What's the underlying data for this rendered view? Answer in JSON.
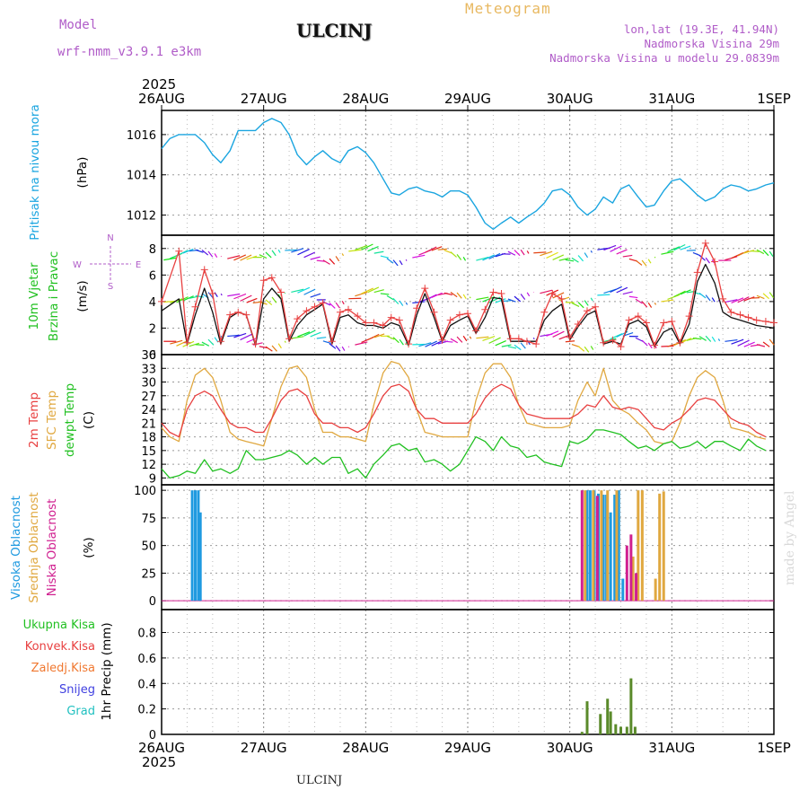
{
  "header": {
    "model_label": "Model",
    "model_name": "wrf-nmm_v3.9.1  e3km",
    "station": "ULCINJ",
    "title": "Meteogram",
    "lonlat": "lon,lat (19.3E, 41.94N)",
    "elevation": "Nadmorska Visina 29m",
    "elevation_model": "Nadmorska Visina u modelu 29.0839m"
  },
  "footer": {
    "station": "ULCINJ",
    "credit": "made by Angel"
  },
  "colors": {
    "pressure": "#1aa5e0",
    "wind_avg": "#111111",
    "wind_gust": "#e84040",
    "temp2m": "#e84040",
    "sfc_temp": "#e0a840",
    "dewpoint": "#20c020",
    "cloud_high": "#1f9ae0",
    "cloud_mid": "#e0a840",
    "cloud_low": "#d02090",
    "precip_total": "#20c020",
    "precip_conv": "#e84040",
    "precip_frozen": "#f07830",
    "snow": "#4040e0",
    "hail": "#20c0c0",
    "precip_bar": "#5a8a2a"
  },
  "chart_data": [
    {
      "type": "line",
      "name": "pressure",
      "ylabel": [
        "Pritisak na nivou mora",
        "(hPa)"
      ],
      "ylim": [
        1011,
        1017.2
      ],
      "yticks": [
        1012,
        1014,
        1016
      ],
      "grid": true,
      "x_days": [
        0,
        0.08,
        0.17,
        0.25,
        0.33,
        0.42,
        0.5,
        0.58,
        0.67,
        0.75,
        0.83,
        0.92,
        1.0,
        1.08,
        1.17,
        1.25,
        1.33,
        1.42,
        1.5,
        1.58,
        1.67,
        1.75,
        1.83,
        1.92,
        2.0,
        2.08,
        2.17,
        2.25,
        2.33,
        2.42,
        2.5,
        2.58,
        2.67,
        2.75,
        2.83,
        2.92,
        3.0,
        3.08,
        3.17,
        3.25,
        3.33,
        3.42,
        3.5,
        3.58,
        3.67,
        3.75,
        3.83,
        3.92,
        4.0,
        4.08,
        4.17,
        4.25,
        4.33,
        4.42,
        4.5,
        4.58,
        4.67,
        4.75,
        4.83,
        4.92,
        5.0,
        5.08,
        5.17,
        5.25,
        5.33,
        5.42,
        5.5,
        5.58,
        5.67,
        5.75,
        5.83,
        5.92,
        6.0
      ],
      "values": [
        1015.3,
        1015.8,
        1016.0,
        1016.0,
        1016.0,
        1015.6,
        1015.0,
        1014.6,
        1015.2,
        1016.2,
        1016.2,
        1016.2,
        1016.6,
        1016.8,
        1016.6,
        1016.0,
        1015.0,
        1014.5,
        1014.9,
        1015.2,
        1014.8,
        1014.6,
        1015.2,
        1015.4,
        1015.1,
        1014.6,
        1013.8,
        1013.1,
        1013.0,
        1013.3,
        1013.4,
        1013.2,
        1013.1,
        1012.9,
        1013.2,
        1013.2,
        1013.0,
        1012.4,
        1011.6,
        1011.3,
        1011.6,
        1011.9,
        1011.6,
        1011.9,
        1012.2,
        1012.6,
        1013.2,
        1013.3,
        1013.0,
        1012.4,
        1012.0,
        1012.3,
        1012.9,
        1012.6,
        1013.3,
        1013.5,
        1012.9,
        1012.4,
        1012.5,
        1013.2,
        1013.7,
        1013.8,
        1013.4,
        1013.0,
        1012.7,
        1012.9,
        1013.3,
        1013.5,
        1013.4,
        1013.2,
        1013.3,
        1013.5,
        1013.6
      ]
    },
    {
      "type": "line",
      "name": "wind",
      "ylabel": [
        "10m Vjetar",
        "Brzina i Pravac",
        "(m/s)"
      ],
      "compass": {
        "north": "N",
        "south": "S",
        "west": "W",
        "east": "E"
      },
      "ylim": [
        0,
        9
      ],
      "yticks": [
        0,
        2,
        4,
        6,
        8
      ],
      "grid": true,
      "x_days": [
        0,
        0.17,
        0.25,
        0.33,
        0.42,
        0.5,
        0.58,
        0.67,
        0.75,
        0.83,
        0.92,
        1.0,
        1.08,
        1.17,
        1.25,
        1.33,
        1.42,
        1.5,
        1.58,
        1.67,
        1.75,
        1.83,
        1.92,
        2.0,
        2.08,
        2.17,
        2.25,
        2.33,
        2.42,
        2.5,
        2.58,
        2.67,
        2.75,
        2.83,
        2.92,
        3.0,
        3.08,
        3.17,
        3.25,
        3.33,
        3.42,
        3.5,
        3.58,
        3.67,
        3.75,
        3.83,
        3.92,
        4.0,
        4.08,
        4.17,
        4.25,
        4.33,
        4.42,
        4.5,
        4.58,
        4.67,
        4.75,
        4.83,
        4.92,
        5.0,
        5.08,
        5.17,
        5.25,
        5.33,
        5.42,
        5.5,
        5.58,
        5.67,
        5.75,
        5.83,
        5.92,
        6.0
      ],
      "series": [
        {
          "name": "avg",
          "values": [
            3.3,
            4.2,
            0.8,
            3.0,
            5.0,
            3.2,
            0.8,
            2.8,
            3.2,
            3.0,
            0.7,
            4.2,
            5.0,
            4.2,
            1.0,
            2.2,
            3.0,
            3.4,
            3.8,
            0.8,
            2.8,
            3.0,
            2.4,
            2.2,
            2.2,
            2.0,
            2.4,
            2.2,
            0.7,
            3.0,
            4.6,
            2.8,
            1.0,
            2.2,
            2.6,
            2.9,
            1.6,
            2.8,
            4.3,
            4.2,
            1.0,
            1.0,
            1.0,
            1.0,
            2.6,
            3.3,
            3.8,
            1.1,
            2.1,
            3.0,
            3.3,
            0.8,
            1.0,
            0.8,
            2.3,
            2.6,
            2.1,
            0.6,
            1.7,
            2.0,
            0.8,
            2.3,
            5.5,
            6.8,
            5.4,
            3.2,
            2.8,
            2.6,
            2.4,
            2.2,
            2.1,
            2.0
          ]
        },
        {
          "name": "gust",
          "values": [
            4.0,
            7.8,
            0.9,
            3.6,
            6.4,
            4.6,
            1.0,
            3.0,
            3.2,
            3.0,
            0.8,
            5.6,
            5.8,
            4.7,
            1.2,
            2.7,
            3.3,
            3.6,
            3.9,
            1.0,
            3.2,
            3.4,
            2.9,
            2.4,
            2.4,
            2.2,
            2.8,
            2.6,
            0.8,
            3.5,
            5.0,
            3.2,
            1.1,
            2.6,
            3.0,
            3.1,
            1.8,
            3.4,
            4.7,
            4.6,
            1.2,
            1.2,
            1.0,
            0.8,
            3.2,
            4.6,
            4.2,
            1.3,
            2.3,
            3.3,
            3.6,
            0.9,
            1.1,
            0.6,
            2.6,
            2.9,
            2.4,
            0.7,
            2.4,
            2.5,
            0.9,
            2.9,
            6.2,
            8.4,
            7.0,
            4.2,
            3.2,
            3.0,
            2.8,
            2.6,
            2.5,
            2.4
          ]
        }
      ]
    },
    {
      "type": "line",
      "name": "temperature",
      "ylabel": [
        "2m Temp",
        "SFC Temp",
        "dewpt Temp",
        "(C)"
      ],
      "ylim": [
        7.5,
        36
      ],
      "yticks": [
        9,
        12,
        15,
        18,
        21,
        24,
        27,
        30,
        33,
        36
      ],
      "grid": true,
      "x_days": [
        0,
        0.08,
        0.17,
        0.25,
        0.33,
        0.42,
        0.5,
        0.58,
        0.67,
        0.75,
        0.83,
        0.92,
        1.0,
        1.08,
        1.17,
        1.25,
        1.33,
        1.42,
        1.5,
        1.58,
        1.67,
        1.75,
        1.83,
        1.92,
        2.0,
        2.08,
        2.17,
        2.25,
        2.33,
        2.42,
        2.5,
        2.58,
        2.67,
        2.75,
        2.83,
        2.92,
        3.0,
        3.08,
        3.17,
        3.25,
        3.33,
        3.42,
        3.5,
        3.58,
        3.67,
        3.75,
        3.83,
        3.92,
        4.0,
        4.08,
        4.17,
        4.25,
        4.33,
        4.42,
        4.5,
        4.58,
        4.67,
        4.75,
        4.83,
        4.92,
        5.0,
        5.08,
        5.17,
        5.25,
        5.33,
        5.42,
        5.5,
        5.58,
        5.67,
        5.75,
        5.83,
        5.92,
        6.0
      ],
      "series": [
        {
          "name": "2m",
          "values": [
            21,
            19,
            18,
            24,
            27,
            28,
            27,
            24,
            21,
            20,
            20,
            19,
            19,
            22,
            26,
            28,
            28.5,
            27,
            23,
            21,
            21,
            20,
            20,
            19,
            20,
            23,
            27,
            29,
            29.5,
            28,
            24,
            22,
            22,
            21,
            21,
            21,
            21,
            23,
            26.5,
            28.5,
            29.5,
            28.5,
            25,
            23,
            22.5,
            22,
            22,
            22,
            22,
            23,
            25,
            24.5,
            27,
            24.5,
            24,
            24.5,
            24,
            22,
            20,
            19.5,
            21,
            22,
            24,
            26,
            26.5,
            26,
            24,
            22,
            21,
            20.5,
            19,
            18
          ]
        },
        {
          "name": "sfc",
          "values": [
            20,
            18,
            17,
            26,
            31.5,
            33,
            31,
            26,
            19,
            17.5,
            17,
            16.5,
            16,
            22,
            29,
            33,
            33.5,
            31,
            24,
            19,
            19,
            18,
            18,
            17.5,
            17,
            25,
            32,
            34.5,
            34,
            31,
            24,
            19,
            18.5,
            18,
            18,
            18,
            18,
            26,
            32,
            34,
            34,
            31,
            25,
            21,
            20.5,
            20,
            20,
            20,
            20.5,
            26,
            30,
            27,
            33,
            26,
            24,
            23,
            21,
            19.5,
            17,
            16.5,
            17,
            21,
            27,
            31,
            32.5,
            31,
            26,
            20,
            19.5,
            19,
            18,
            17.5
          ]
        },
        {
          "name": "dewpt",
          "values": [
            11,
            9,
            9.5,
            10.5,
            10,
            13,
            10.5,
            11,
            10,
            11,
            15,
            13,
            13,
            13.5,
            14,
            15,
            14,
            12,
            13.5,
            12,
            13.5,
            13.5,
            10,
            11,
            9,
            12,
            14,
            16,
            16.5,
            15,
            15.5,
            12.5,
            13,
            12,
            10.5,
            12,
            15,
            18,
            17,
            15,
            18,
            16,
            15.5,
            13.5,
            14,
            12.5,
            12,
            11.5,
            17,
            16.5,
            17.5,
            19.5,
            19.5,
            19,
            18.5,
            17,
            15.5,
            16,
            15,
            16.5,
            17,
            15.5,
            16,
            17,
            15.5,
            17,
            17,
            16,
            15,
            17.5,
            16,
            15
          ]
        }
      ]
    },
    {
      "type": "bar",
      "name": "clouds",
      "ylabel": [
        "Visoka Oblacnost",
        "Srednja Oblacnost",
        "Niska Oblacnost",
        "(%)"
      ],
      "ylim": [
        -8,
        105
      ],
      "yticks": [
        0,
        25,
        50,
        75,
        100
      ],
      "grid": true,
      "series": [
        {
          "name": "high",
          "x_days": [
            0.3,
            0.33,
            0.36,
            0.38,
            4.17,
            4.2,
            4.24,
            4.28,
            4.33,
            4.36,
            4.4,
            4.44,
            4.48,
            4.52
          ],
          "values": [
            100,
            100,
            100,
            80,
            100,
            100,
            100,
            97,
            96,
            96,
            80,
            96,
            100,
            20
          ]
        },
        {
          "name": "mid",
          "x_days": [
            4.15,
            4.23,
            4.31,
            4.37,
            4.46,
            4.62,
            4.67,
            4.71,
            4.84,
            4.88,
            4.92
          ],
          "values": [
            100,
            100,
            100,
            100,
            100,
            40,
            100,
            100,
            20,
            97,
            99
          ]
        },
        {
          "name": "low",
          "x_days": [
            4.12,
            4.27,
            4.56,
            4.6,
            4.65
          ],
          "values": [
            100,
            95,
            50,
            60,
            25
          ]
        }
      ]
    },
    {
      "type": "bar",
      "name": "precip",
      "ylabel": [
        "1hr Precip (mm)"
      ],
      "legend": [
        "Ukupna Kisa",
        "Konvek.Kisa",
        "Zaledj.Kisa",
        "Snijeg",
        "Grad"
      ],
      "ylim": [
        0,
        0.98
      ],
      "yticks": [
        0,
        0.2,
        0.4,
        0.6,
        0.8
      ],
      "grid": true,
      "x_days": [
        4.12,
        4.17,
        4.3,
        4.37,
        4.4,
        4.45,
        4.5,
        4.56,
        4.6,
        4.64
      ],
      "values": [
        0.02,
        0.26,
        0.16,
        0.28,
        0.18,
        0.08,
        0.06,
        0.06,
        0.44,
        0.06
      ]
    }
  ],
  "time_axis": {
    "year": "2025",
    "labels": [
      "26AUG",
      "27AUG",
      "28AUG",
      "29AUG",
      "30AUG",
      "31AUG",
      "1SEP"
    ],
    "days": 6
  }
}
